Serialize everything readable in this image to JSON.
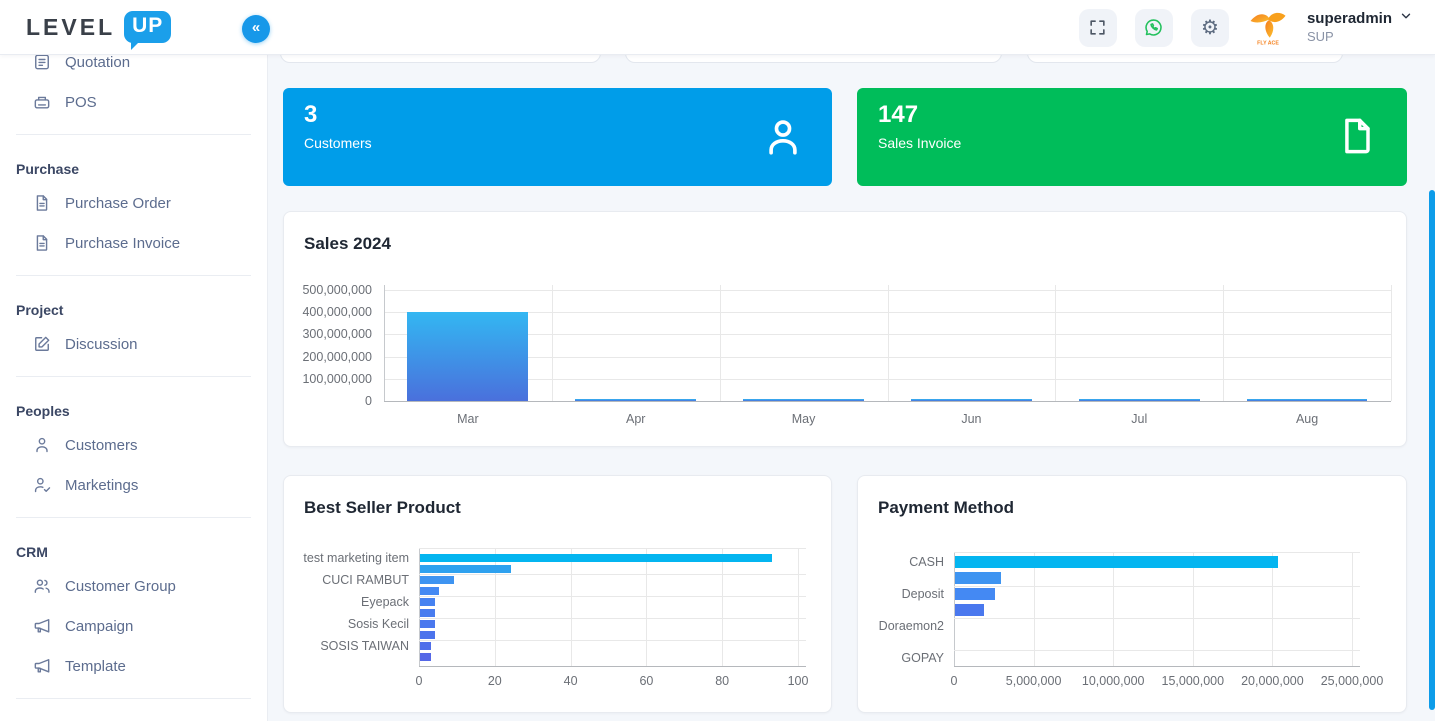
{
  "header": {
    "logo_level": "LEVEL",
    "logo_up": "UP",
    "collapse_glyph": "«",
    "user_name": "superadmin",
    "user_role": "SUP"
  },
  "sidebar": {
    "sections": [
      {
        "title": "",
        "items": [
          {
            "label": "Quotation",
            "icon": "quotation-icon"
          },
          {
            "label": "POS",
            "icon": "pos-icon"
          }
        ]
      },
      {
        "title": "Purchase",
        "items": [
          {
            "label": "Purchase Order",
            "icon": "file-icon"
          },
          {
            "label": "Purchase Invoice",
            "icon": "file-icon"
          }
        ]
      },
      {
        "title": "Project",
        "items": [
          {
            "label": "Discussion",
            "icon": "edit-icon"
          }
        ]
      },
      {
        "title": "Peoples",
        "items": [
          {
            "label": "Customers",
            "icon": "person-icon"
          },
          {
            "label": "Marketings",
            "icon": "person-check-icon"
          }
        ]
      },
      {
        "title": "CRM",
        "items": [
          {
            "label": "Customer Group",
            "icon": "people-icon"
          },
          {
            "label": "Campaign",
            "icon": "megaphone-icon"
          },
          {
            "label": "Template",
            "icon": "megaphone-icon"
          }
        ]
      }
    ]
  },
  "stat_cards": [
    {
      "value": "3",
      "label": "Customers",
      "color": "#009de9",
      "icon": "person-outline-icon"
    },
    {
      "value": "147",
      "label": "Sales Invoice",
      "color": "#00bd5a",
      "icon": "file-outline-icon"
    }
  ],
  "chart_data": [
    {
      "type": "bar",
      "title": "Sales 2024",
      "categories": [
        "Mar",
        "Apr",
        "May",
        "Jun",
        "Jul",
        "Aug"
      ],
      "values": [
        400000000,
        7000000,
        3000000,
        4000000,
        10000000,
        4000000
      ],
      "ylim": [
        0,
        500000000
      ],
      "yticks": [
        0,
        100000000,
        200000000,
        300000000,
        400000000,
        500000000
      ],
      "ytick_labels": [
        "0",
        "100,000,000",
        "200,000,000",
        "300,000,000",
        "400,000,000",
        "500,000,000"
      ],
      "grid": true,
      "legend": "none",
      "bar_gradient": [
        "#33b7f2",
        "#4a70dc"
      ]
    },
    {
      "type": "bar",
      "orientation": "horizontal",
      "title": "Best Seller Product",
      "categories": [
        "test marketing item",
        "CUCI RAMBUT",
        "Eyepack",
        "Sosis Kecil",
        "SOSIS TAIWAN"
      ],
      "series": [
        {
          "name": "series-1",
          "values": [
            93,
            9,
            4,
            4,
            3
          ]
        },
        {
          "name": "series-2",
          "values": [
            24,
            5,
            4,
            4,
            3
          ]
        }
      ],
      "xlim": [
        0,
        100
      ],
      "xticks": [
        0,
        20,
        40,
        60,
        80,
        100
      ],
      "xtick_labels": [
        "0",
        "20",
        "40",
        "60",
        "80",
        "100"
      ],
      "grid": true,
      "legend": "none",
      "bar_colors": [
        "#04b5f0",
        "#2ea1ef",
        "#3e94f1",
        "#4489f3",
        "#4682f1",
        "#487cef",
        "#4a78ee",
        "#4c73ec",
        "#4f6eea",
        "#5568e7"
      ]
    },
    {
      "type": "bar",
      "orientation": "horizontal",
      "title": "Payment Method",
      "categories": [
        "CASH",
        "Deposit",
        "Doraemon2",
        "GOPAY"
      ],
      "series": [
        {
          "name": "series-1",
          "values": [
            20300000,
            2500000,
            0,
            0
          ]
        },
        {
          "name": "series-2",
          "values": [
            2900000,
            1800000,
            0,
            0
          ]
        }
      ],
      "xlim": [
        0,
        25000000
      ],
      "xticks": [
        0,
        5000000,
        10000000,
        15000000,
        20000000,
        25000000
      ],
      "xtick_labels": [
        "0",
        "5,000,000",
        "10,000,000",
        "15,000,000",
        "20,000,000",
        "25,000,000"
      ],
      "grid": true,
      "legend": "none",
      "bar_colors": [
        "#04b5f0",
        "#3e94f1",
        "#4489f3",
        "#4a78ee",
        "#4c73ec",
        "#4f6eea",
        "#5166e8",
        "#5564e6"
      ]
    }
  ],
  "colors": {
    "accent_blue": "#009de9",
    "accent_green": "#00bd5a",
    "scrollbar_blue": "#0d9ce9",
    "collapse_button": "#1798e9",
    "whatsapp_green": "#24c15e",
    "main_background": "#f4f7fb"
  }
}
